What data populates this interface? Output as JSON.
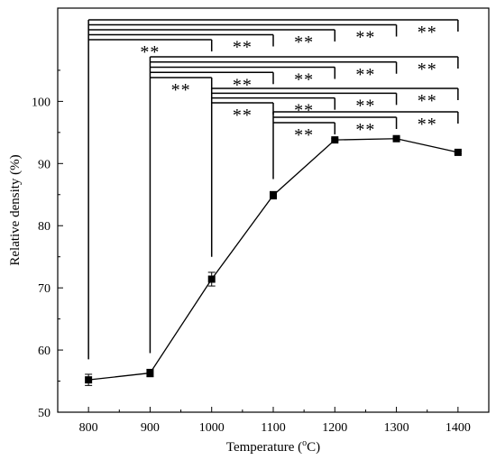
{
  "chart_data": {
    "type": "line",
    "x_label": "Temperature (°C)",
    "y_label": "Relative density (%)",
    "xlim": [
      750,
      1450
    ],
    "ylim": [
      50,
      115
    ],
    "x_ticks": [
      800,
      900,
      1000,
      1100,
      1200,
      1300,
      1400
    ],
    "y_ticks": [
      50,
      60,
      70,
      80,
      90,
      100
    ],
    "series": [
      {
        "x": [
          800,
          900,
          1000,
          1100,
          1200,
          1300,
          1400
        ],
        "y": [
          55.2,
          56.3,
          71.4,
          84.9,
          93.8,
          94.0,
          91.8
        ],
        "error": [
          0.9,
          0.6,
          1.1,
          0.6,
          0.2,
          0.2,
          0.2
        ]
      }
    ],
    "significance_label": "**",
    "significance_comparisons": [
      {
        "from": 800,
        "to": 1000
      },
      {
        "from": 800,
        "to": 1100
      },
      {
        "from": 800,
        "to": 1200
      },
      {
        "from": 800,
        "to": 1300
      },
      {
        "from": 800,
        "to": 1400
      },
      {
        "from": 900,
        "to": 1000
      },
      {
        "from": 900,
        "to": 1100
      },
      {
        "from": 900,
        "to": 1200
      },
      {
        "from": 900,
        "to": 1300
      },
      {
        "from": 900,
        "to": 1400
      },
      {
        "from": 1000,
        "to": 1100
      },
      {
        "from": 1000,
        "to": 1200
      },
      {
        "from": 1000,
        "to": 1300
      },
      {
        "from": 1000,
        "to": 1400
      },
      {
        "from": 1100,
        "to": 1200
      },
      {
        "from": 1100,
        "to": 1300
      },
      {
        "from": 1100,
        "to": 1400
      }
    ]
  }
}
